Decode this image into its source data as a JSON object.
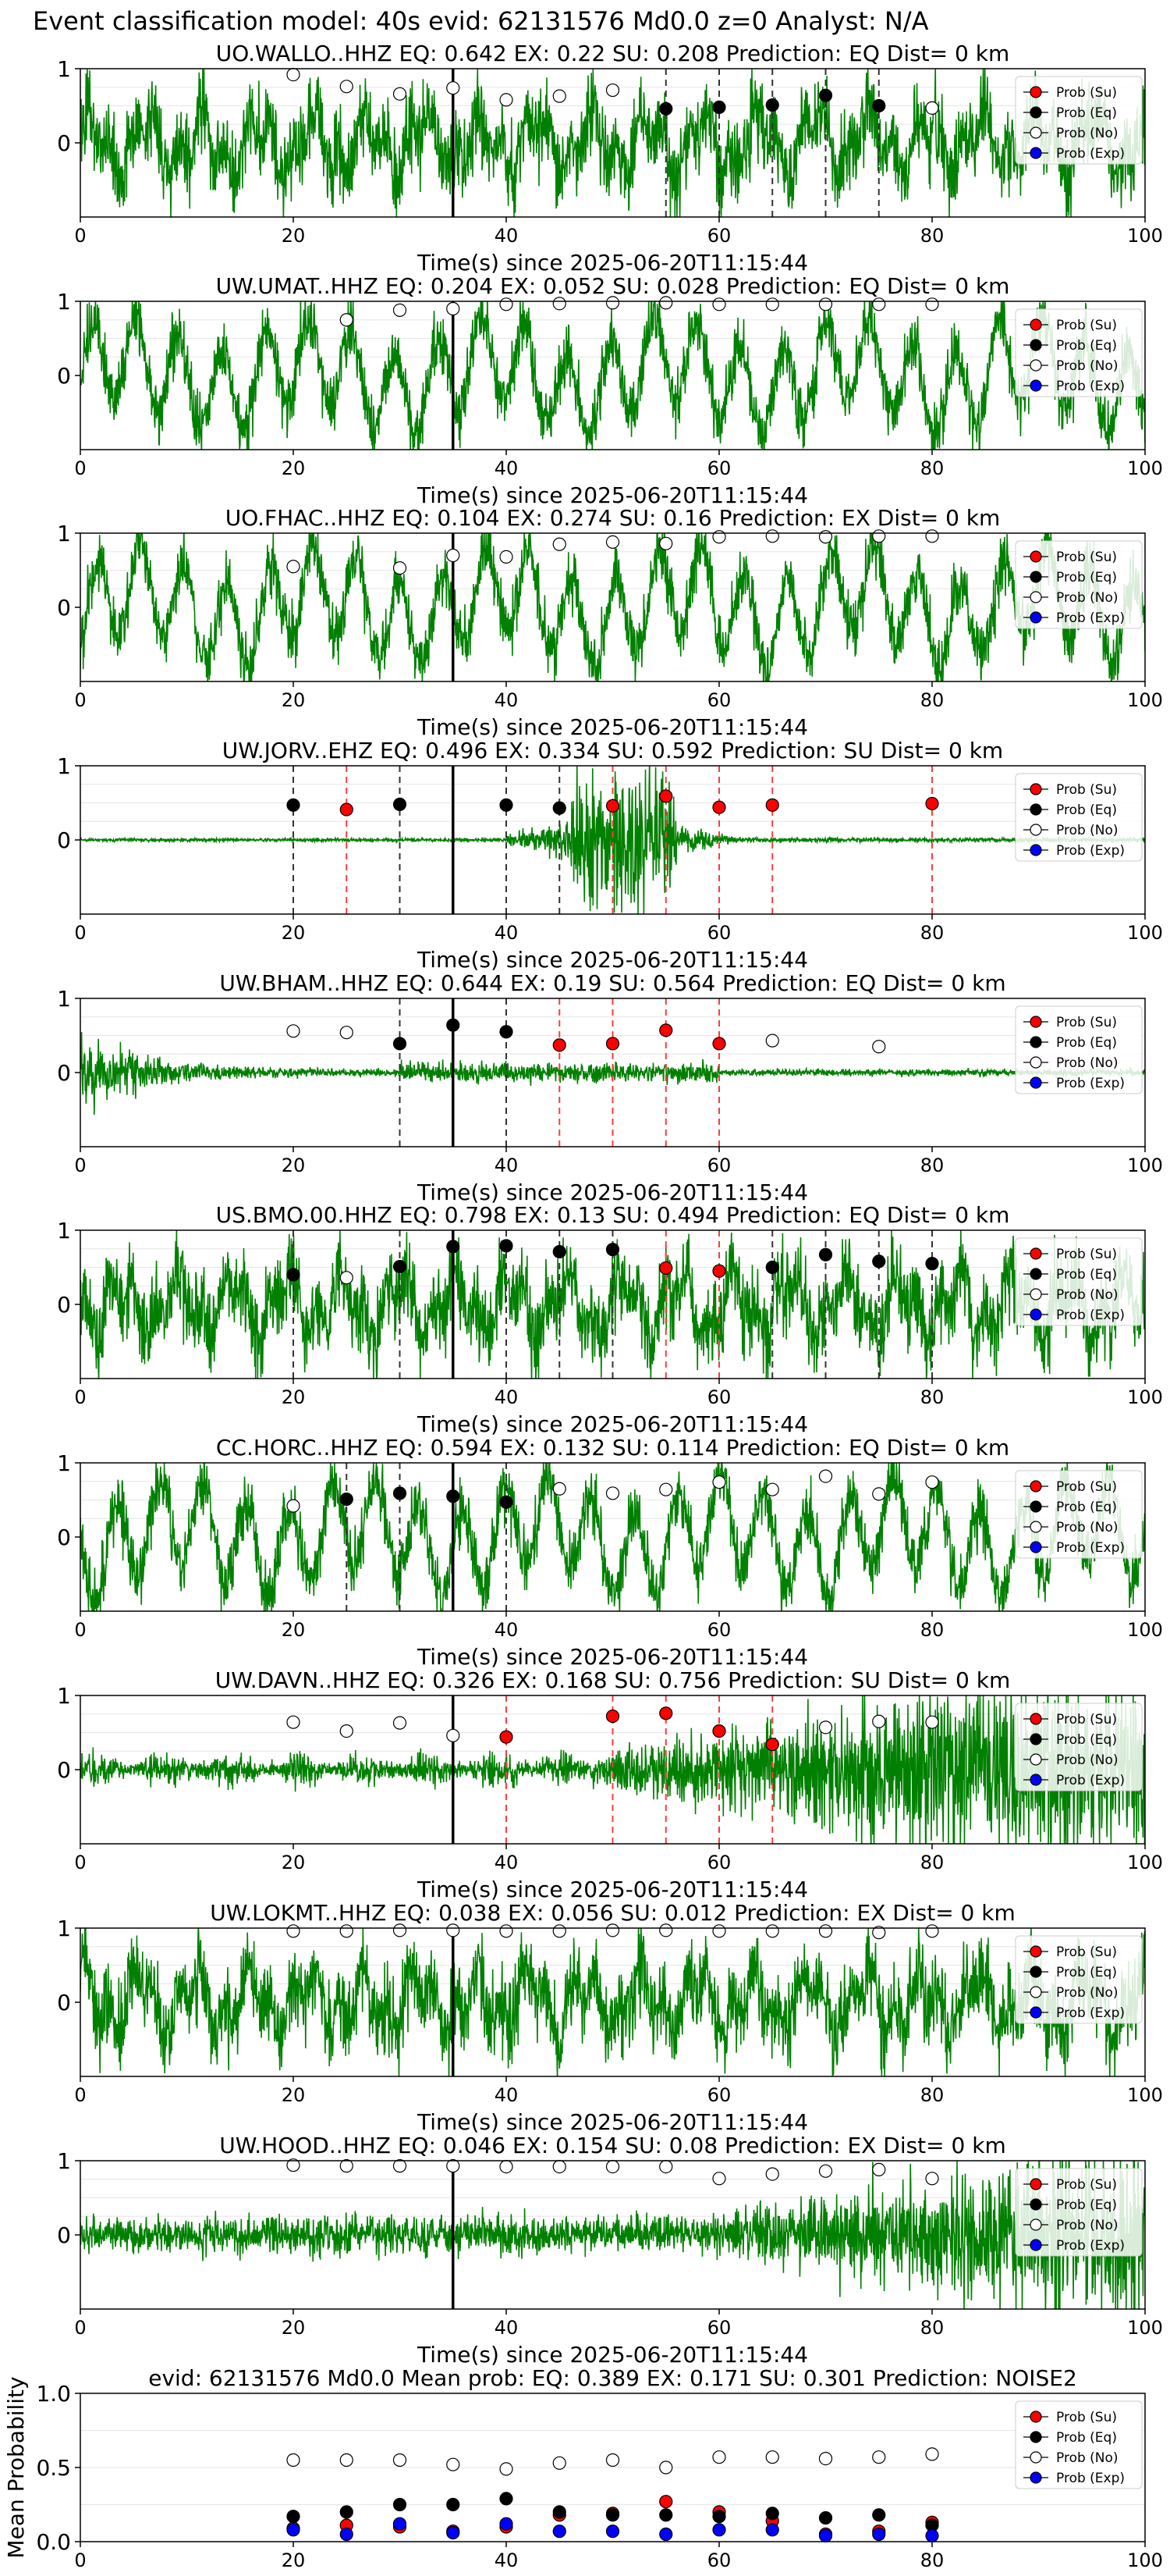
{
  "figure_title": "Event classification model: 40s evid: 62131576 Md0.0 z=0 Analyst: N/A",
  "legend_labels": [
    "Prob (Su)",
    "Prob (Eq)",
    "Prob (No)",
    "Prob (Exp)"
  ],
  "colors": {
    "su": "#ff0000",
    "eq": "#000000",
    "no": "#ffffff",
    "exp": "#0000ff",
    "trace": "#008000"
  },
  "chart_data": [
    {
      "type": "line",
      "station": "UO.WALLO..HHZ",
      "title": "UO.WALLO..HHZ   EQ: 0.642  EX: 0.22  SU: 0.208   Prediction: EQ    Dist= 0 km",
      "xlabel": "Time(s) since 2025-06-20T11:15:44",
      "xlim": [
        0,
        100
      ],
      "ylim": [
        -1,
        1
      ],
      "xticks": [
        "0",
        "20",
        "40",
        "60",
        "80",
        "100"
      ],
      "yticks": [
        "0",
        "1"
      ],
      "style": "noisy",
      "pick_line": 35,
      "points": [
        [
          "no",
          20,
          0.92
        ],
        [
          "no",
          25,
          0.76
        ],
        [
          "no",
          30,
          0.66
        ],
        [
          "no",
          35,
          0.74
        ],
        [
          "no",
          40,
          0.58
        ],
        [
          "no",
          45,
          0.63
        ],
        [
          "no",
          50,
          0.71
        ],
        [
          "eq",
          55,
          0.46
        ],
        [
          "eq",
          60,
          0.48
        ],
        [
          "eq",
          65,
          0.51
        ],
        [
          "eq",
          70,
          0.64
        ],
        [
          "eq",
          75,
          0.5
        ],
        [
          "no",
          80,
          0.47
        ]
      ],
      "vlines": [
        [
          "eq",
          55
        ],
        [
          "eq",
          60
        ],
        [
          "eq",
          65
        ],
        [
          "eq",
          70
        ],
        [
          "eq",
          75
        ]
      ]
    },
    {
      "type": "line",
      "station": "UW.UMAT..HHZ",
      "title": "UW.UMAT..HHZ   EQ: 0.204  EX: 0.052  SU: 0.028   Prediction: EQ    Dist= 0 km",
      "xlabel": "Time(s) since 2025-06-20T11:15:44",
      "xlim": [
        0,
        100
      ],
      "ylim": [
        -1,
        1
      ],
      "xticks": [
        "0",
        "20",
        "40",
        "60",
        "80",
        "100"
      ],
      "yticks": [
        "0",
        "1"
      ],
      "style": "oscill",
      "pick_line": 35,
      "points": [
        [
          "no",
          25,
          0.75
        ],
        [
          "no",
          30,
          0.88
        ],
        [
          "no",
          35,
          0.9
        ],
        [
          "no",
          40,
          0.96
        ],
        [
          "no",
          45,
          0.97
        ],
        [
          "no",
          50,
          0.98
        ],
        [
          "no",
          55,
          0.98
        ],
        [
          "no",
          60,
          0.96
        ],
        [
          "no",
          65,
          0.96
        ],
        [
          "no",
          70,
          0.96
        ],
        [
          "no",
          75,
          0.96
        ],
        [
          "no",
          80,
          0.96
        ]
      ],
      "vlines": []
    },
    {
      "type": "line",
      "station": "UO.FHAC..HHZ",
      "title": "UO.FHAC..HHZ   EQ: 0.104  EX: 0.274  SU: 0.16   Prediction: EX    Dist= 0 km",
      "xlabel": "Time(s) since 2025-06-20T11:15:44",
      "xlim": [
        0,
        100
      ],
      "ylim": [
        -1,
        1
      ],
      "xticks": [
        "0",
        "20",
        "40",
        "60",
        "80",
        "100"
      ],
      "yticks": [
        "0",
        "1"
      ],
      "style": "oscill",
      "pick_line": 35,
      "points": [
        [
          "no",
          20,
          0.55
        ],
        [
          "no",
          30,
          0.53
        ],
        [
          "no",
          35,
          0.7
        ],
        [
          "no",
          40,
          0.68
        ],
        [
          "no",
          45,
          0.85
        ],
        [
          "no",
          50,
          0.88
        ],
        [
          "no",
          55,
          0.86
        ],
        [
          "no",
          60,
          0.95
        ],
        [
          "no",
          65,
          0.96
        ],
        [
          "no",
          70,
          0.95
        ],
        [
          "no",
          75,
          0.96
        ],
        [
          "no",
          80,
          0.96
        ]
      ],
      "vlines": []
    },
    {
      "type": "line",
      "station": "UW.JORV..EHZ",
      "title": "UW.JORV..EHZ   EQ: 0.496  EX: 0.334  SU: 0.592   Prediction: SU    Dist= 0 km",
      "xlabel": "Time(s) since 2025-06-20T11:15:44",
      "xlim": [
        0,
        100
      ],
      "ylim": [
        -1,
        1
      ],
      "xticks": [
        "0",
        "20",
        "40",
        "60",
        "80",
        "100"
      ],
      "yticks": [
        "0",
        "1"
      ],
      "style": "burst",
      "pick_line": 35,
      "points": [
        [
          "eq",
          20,
          0.47
        ],
        [
          "su",
          25,
          0.41
        ],
        [
          "eq",
          30,
          0.48
        ],
        [
          "eq",
          40,
          0.47
        ],
        [
          "eq",
          45,
          0.43
        ],
        [
          "su",
          50,
          0.46
        ],
        [
          "su",
          55,
          0.59
        ],
        [
          "su",
          60,
          0.44
        ],
        [
          "su",
          65,
          0.47
        ],
        [
          "su",
          80,
          0.49
        ]
      ],
      "vlines": [
        [
          "eq",
          20
        ],
        [
          "su",
          25
        ],
        [
          "eq",
          30
        ],
        [
          "eq",
          40
        ],
        [
          "eq",
          45
        ],
        [
          "su",
          50
        ],
        [
          "su",
          55
        ],
        [
          "su",
          60
        ],
        [
          "su",
          65
        ],
        [
          "su",
          80
        ]
      ]
    },
    {
      "type": "line",
      "station": "UW.BHAM..HHZ",
      "title": "UW.BHAM..HHZ   EQ: 0.644  EX: 0.19  SU: 0.564   Prediction: EQ    Dist= 0 km",
      "xlabel": "Time(s) since 2025-06-20T11:15:44",
      "xlim": [
        0,
        100
      ],
      "ylim": [
        -1,
        1
      ],
      "xticks": [
        "0",
        "20",
        "40",
        "60",
        "80",
        "100"
      ],
      "yticks": [
        "0",
        "1"
      ],
      "style": "decay",
      "pick_line": 35,
      "points": [
        [
          "no",
          20,
          0.56
        ],
        [
          "no",
          25,
          0.54
        ],
        [
          "eq",
          30,
          0.39
        ],
        [
          "eq",
          35,
          0.64
        ],
        [
          "eq",
          40,
          0.55
        ],
        [
          "su",
          45,
          0.37
        ],
        [
          "su",
          50,
          0.39
        ],
        [
          "su",
          55,
          0.57
        ],
        [
          "su",
          60,
          0.39
        ],
        [
          "no",
          65,
          0.43
        ],
        [
          "no",
          75,
          0.35
        ]
      ],
      "vlines": [
        [
          "eq",
          30
        ],
        [
          "eq",
          40
        ],
        [
          "su",
          45
        ],
        [
          "su",
          50
        ],
        [
          "su",
          55
        ],
        [
          "su",
          60
        ]
      ]
    },
    {
      "type": "line",
      "station": "US.BMO.00.HHZ",
      "title": "US.BMO.00.HHZ   EQ: 0.798  EX: 0.13  SU: 0.494   Prediction: EQ    Dist= 0 km",
      "xlabel": "Time(s) since 2025-06-20T11:15:44",
      "xlim": [
        0,
        100
      ],
      "ylim": [
        -1,
        1
      ],
      "xticks": [
        "0",
        "20",
        "40",
        "60",
        "80",
        "100"
      ],
      "yticks": [
        "0",
        "1"
      ],
      "style": "noisy",
      "pick_line": 35,
      "points": [
        [
          "eq",
          20,
          0.4
        ],
        [
          "no",
          25,
          0.36
        ],
        [
          "eq",
          30,
          0.51
        ],
        [
          "eq",
          35,
          0.78
        ],
        [
          "eq",
          40,
          0.79
        ],
        [
          "eq",
          45,
          0.71
        ],
        [
          "eq",
          50,
          0.74
        ],
        [
          "su",
          55,
          0.49
        ],
        [
          "su",
          60,
          0.45
        ],
        [
          "eq",
          65,
          0.5
        ],
        [
          "eq",
          70,
          0.67
        ],
        [
          "eq",
          75,
          0.58
        ],
        [
          "eq",
          80,
          0.55
        ]
      ],
      "vlines": [
        [
          "eq",
          20
        ],
        [
          "eq",
          30
        ],
        [
          "eq",
          40
        ],
        [
          "eq",
          45
        ],
        [
          "eq",
          50
        ],
        [
          "su",
          55
        ],
        [
          "su",
          60
        ],
        [
          "eq",
          65
        ],
        [
          "eq",
          70
        ],
        [
          "eq",
          75
        ],
        [
          "eq",
          80
        ]
      ]
    },
    {
      "type": "line",
      "station": "CC.HORC..HHZ",
      "title": "CC.HORC..HHZ   EQ: 0.594  EX: 0.132  SU: 0.114   Prediction: EQ    Dist= 0 km",
      "xlabel": "Time(s) since 2025-06-20T11:15:44",
      "xlim": [
        0,
        100
      ],
      "ylim": [
        -1,
        1
      ],
      "xticks": [
        "0",
        "20",
        "40",
        "60",
        "80",
        "100"
      ],
      "yticks": [
        "0",
        "1"
      ],
      "style": "oscill",
      "pick_line": 35,
      "points": [
        [
          "no",
          20,
          0.42
        ],
        [
          "eq",
          25,
          0.51
        ],
        [
          "eq",
          30,
          0.59
        ],
        [
          "eq",
          35,
          0.55
        ],
        [
          "eq",
          40,
          0.47
        ],
        [
          "no",
          45,
          0.65
        ],
        [
          "no",
          50,
          0.59
        ],
        [
          "no",
          55,
          0.64
        ],
        [
          "no",
          60,
          0.74
        ],
        [
          "no",
          65,
          0.64
        ],
        [
          "no",
          70,
          0.82
        ],
        [
          "no",
          75,
          0.58
        ],
        [
          "no",
          80,
          0.74
        ]
      ],
      "vlines": [
        [
          "eq",
          25
        ],
        [
          "eq",
          30
        ],
        [
          "eq",
          40
        ]
      ]
    },
    {
      "type": "line",
      "station": "UW.DAVN..HHZ",
      "title": "UW.DAVN..HHZ   EQ: 0.326  EX: 0.168  SU: 0.756   Prediction: SU    Dist= 0 km",
      "xlabel": "Time(s) since 2025-06-20T11:15:44",
      "xlim": [
        0,
        100
      ],
      "ylim": [
        -1,
        1
      ],
      "xticks": [
        "0",
        "20",
        "40",
        "60",
        "80",
        "100"
      ],
      "yticks": [
        "0",
        "1"
      ],
      "style": "grow",
      "pick_line": 35,
      "points": [
        [
          "no",
          20,
          0.64
        ],
        [
          "no",
          25,
          0.52
        ],
        [
          "no",
          30,
          0.63
        ],
        [
          "no",
          35,
          0.46
        ],
        [
          "su",
          40,
          0.44
        ],
        [
          "su",
          50,
          0.72
        ],
        [
          "su",
          55,
          0.76
        ],
        [
          "su",
          60,
          0.52
        ],
        [
          "su",
          65,
          0.34
        ],
        [
          "no",
          70,
          0.57
        ],
        [
          "no",
          75,
          0.65
        ],
        [
          "no",
          80,
          0.64
        ]
      ],
      "vlines": [
        [
          "su",
          40
        ],
        [
          "su",
          50
        ],
        [
          "su",
          55
        ],
        [
          "su",
          60
        ],
        [
          "su",
          65
        ]
      ]
    },
    {
      "type": "line",
      "station": "UW.LOKMT..HHZ",
      "title": "UW.LOKMT..HHZ   EQ: 0.038  EX: 0.056  SU: 0.012   Prediction: EX    Dist= 0 km",
      "xlabel": "Time(s) since 2025-06-20T11:15:44",
      "xlim": [
        0,
        100
      ],
      "ylim": [
        -1,
        1
      ],
      "xticks": [
        "0",
        "20",
        "40",
        "60",
        "80",
        "100"
      ],
      "yticks": [
        "0",
        "1"
      ],
      "style": "noisy",
      "pick_line": 35,
      "points": [
        [
          "no",
          20,
          0.96
        ],
        [
          "no",
          25,
          0.96
        ],
        [
          "no",
          30,
          0.97
        ],
        [
          "no",
          35,
          0.97
        ],
        [
          "no",
          40,
          0.96
        ],
        [
          "no",
          45,
          0.96
        ],
        [
          "no",
          50,
          0.97
        ],
        [
          "no",
          55,
          0.97
        ],
        [
          "no",
          60,
          0.96
        ],
        [
          "no",
          65,
          0.96
        ],
        [
          "no",
          70,
          0.96
        ],
        [
          "no",
          75,
          0.94
        ],
        [
          "no",
          80,
          0.96
        ]
      ],
      "vlines": []
    },
    {
      "type": "line",
      "station": "UW.HOOD..HHZ",
      "title": "UW.HOOD..HHZ   EQ: 0.046  EX: 0.154  SU: 0.08   Prediction: EX    Dist= 0 km",
      "xlabel": "Time(s) since 2025-06-20T11:15:44",
      "xlim": [
        0,
        100
      ],
      "ylim": [
        -1,
        1
      ],
      "xticks": [
        "0",
        "20",
        "40",
        "60",
        "80",
        "100"
      ],
      "yticks": [
        "0",
        "1"
      ],
      "style": "growN",
      "pick_line": 35,
      "points": [
        [
          "no",
          20,
          0.94
        ],
        [
          "no",
          25,
          0.93
        ],
        [
          "no",
          30,
          0.93
        ],
        [
          "no",
          35,
          0.93
        ],
        [
          "no",
          40,
          0.92
        ],
        [
          "no",
          45,
          0.92
        ],
        [
          "no",
          50,
          0.92
        ],
        [
          "no",
          55,
          0.92
        ],
        [
          "no",
          60,
          0.76
        ],
        [
          "no",
          65,
          0.82
        ],
        [
          "no",
          70,
          0.86
        ],
        [
          "no",
          75,
          0.88
        ],
        [
          "no",
          80,
          0.76
        ]
      ],
      "vlines": []
    },
    {
      "type": "scatter",
      "title": "evid: 62131576  Md0.0   Mean prob:   EQ: 0.389  EX: 0.171  SU: 0.301   Prediction: NOISE2",
      "ylabel": "Mean Probability",
      "xlim": [
        0,
        100
      ],
      "ylim": [
        0,
        1
      ],
      "xticks": [
        "0",
        "20",
        "40",
        "60",
        "80",
        "100"
      ],
      "yticks": [
        "0.0",
        "0.5",
        "1.0"
      ],
      "x": [
        20,
        25,
        30,
        35,
        40,
        45,
        50,
        55,
        60,
        65,
        70,
        75,
        80
      ],
      "series": [
        {
          "name": "Prob (Su)",
          "key": "su",
          "values": [
            0.09,
            0.11,
            0.1,
            0.07,
            0.1,
            0.18,
            0.19,
            0.27,
            0.2,
            0.14,
            0.05,
            0.07,
            0.13
          ]
        },
        {
          "name": "Prob (Eq)",
          "key": "eq",
          "values": [
            0.17,
            0.2,
            0.25,
            0.25,
            0.29,
            0.2,
            0.18,
            0.18,
            0.17,
            0.19,
            0.16,
            0.18,
            0.11
          ]
        },
        {
          "name": "Prob (No)",
          "key": "no",
          "values": [
            0.55,
            0.55,
            0.55,
            0.52,
            0.49,
            0.53,
            0.55,
            0.5,
            0.57,
            0.57,
            0.56,
            0.57,
            0.59
          ]
        },
        {
          "name": "Prob (Exp)",
          "key": "exp",
          "values": [
            0.08,
            0.05,
            0.12,
            0.06,
            0.12,
            0.07,
            0.07,
            0.05,
            0.08,
            0.08,
            0.04,
            0.05,
            0.04
          ]
        }
      ]
    }
  ]
}
